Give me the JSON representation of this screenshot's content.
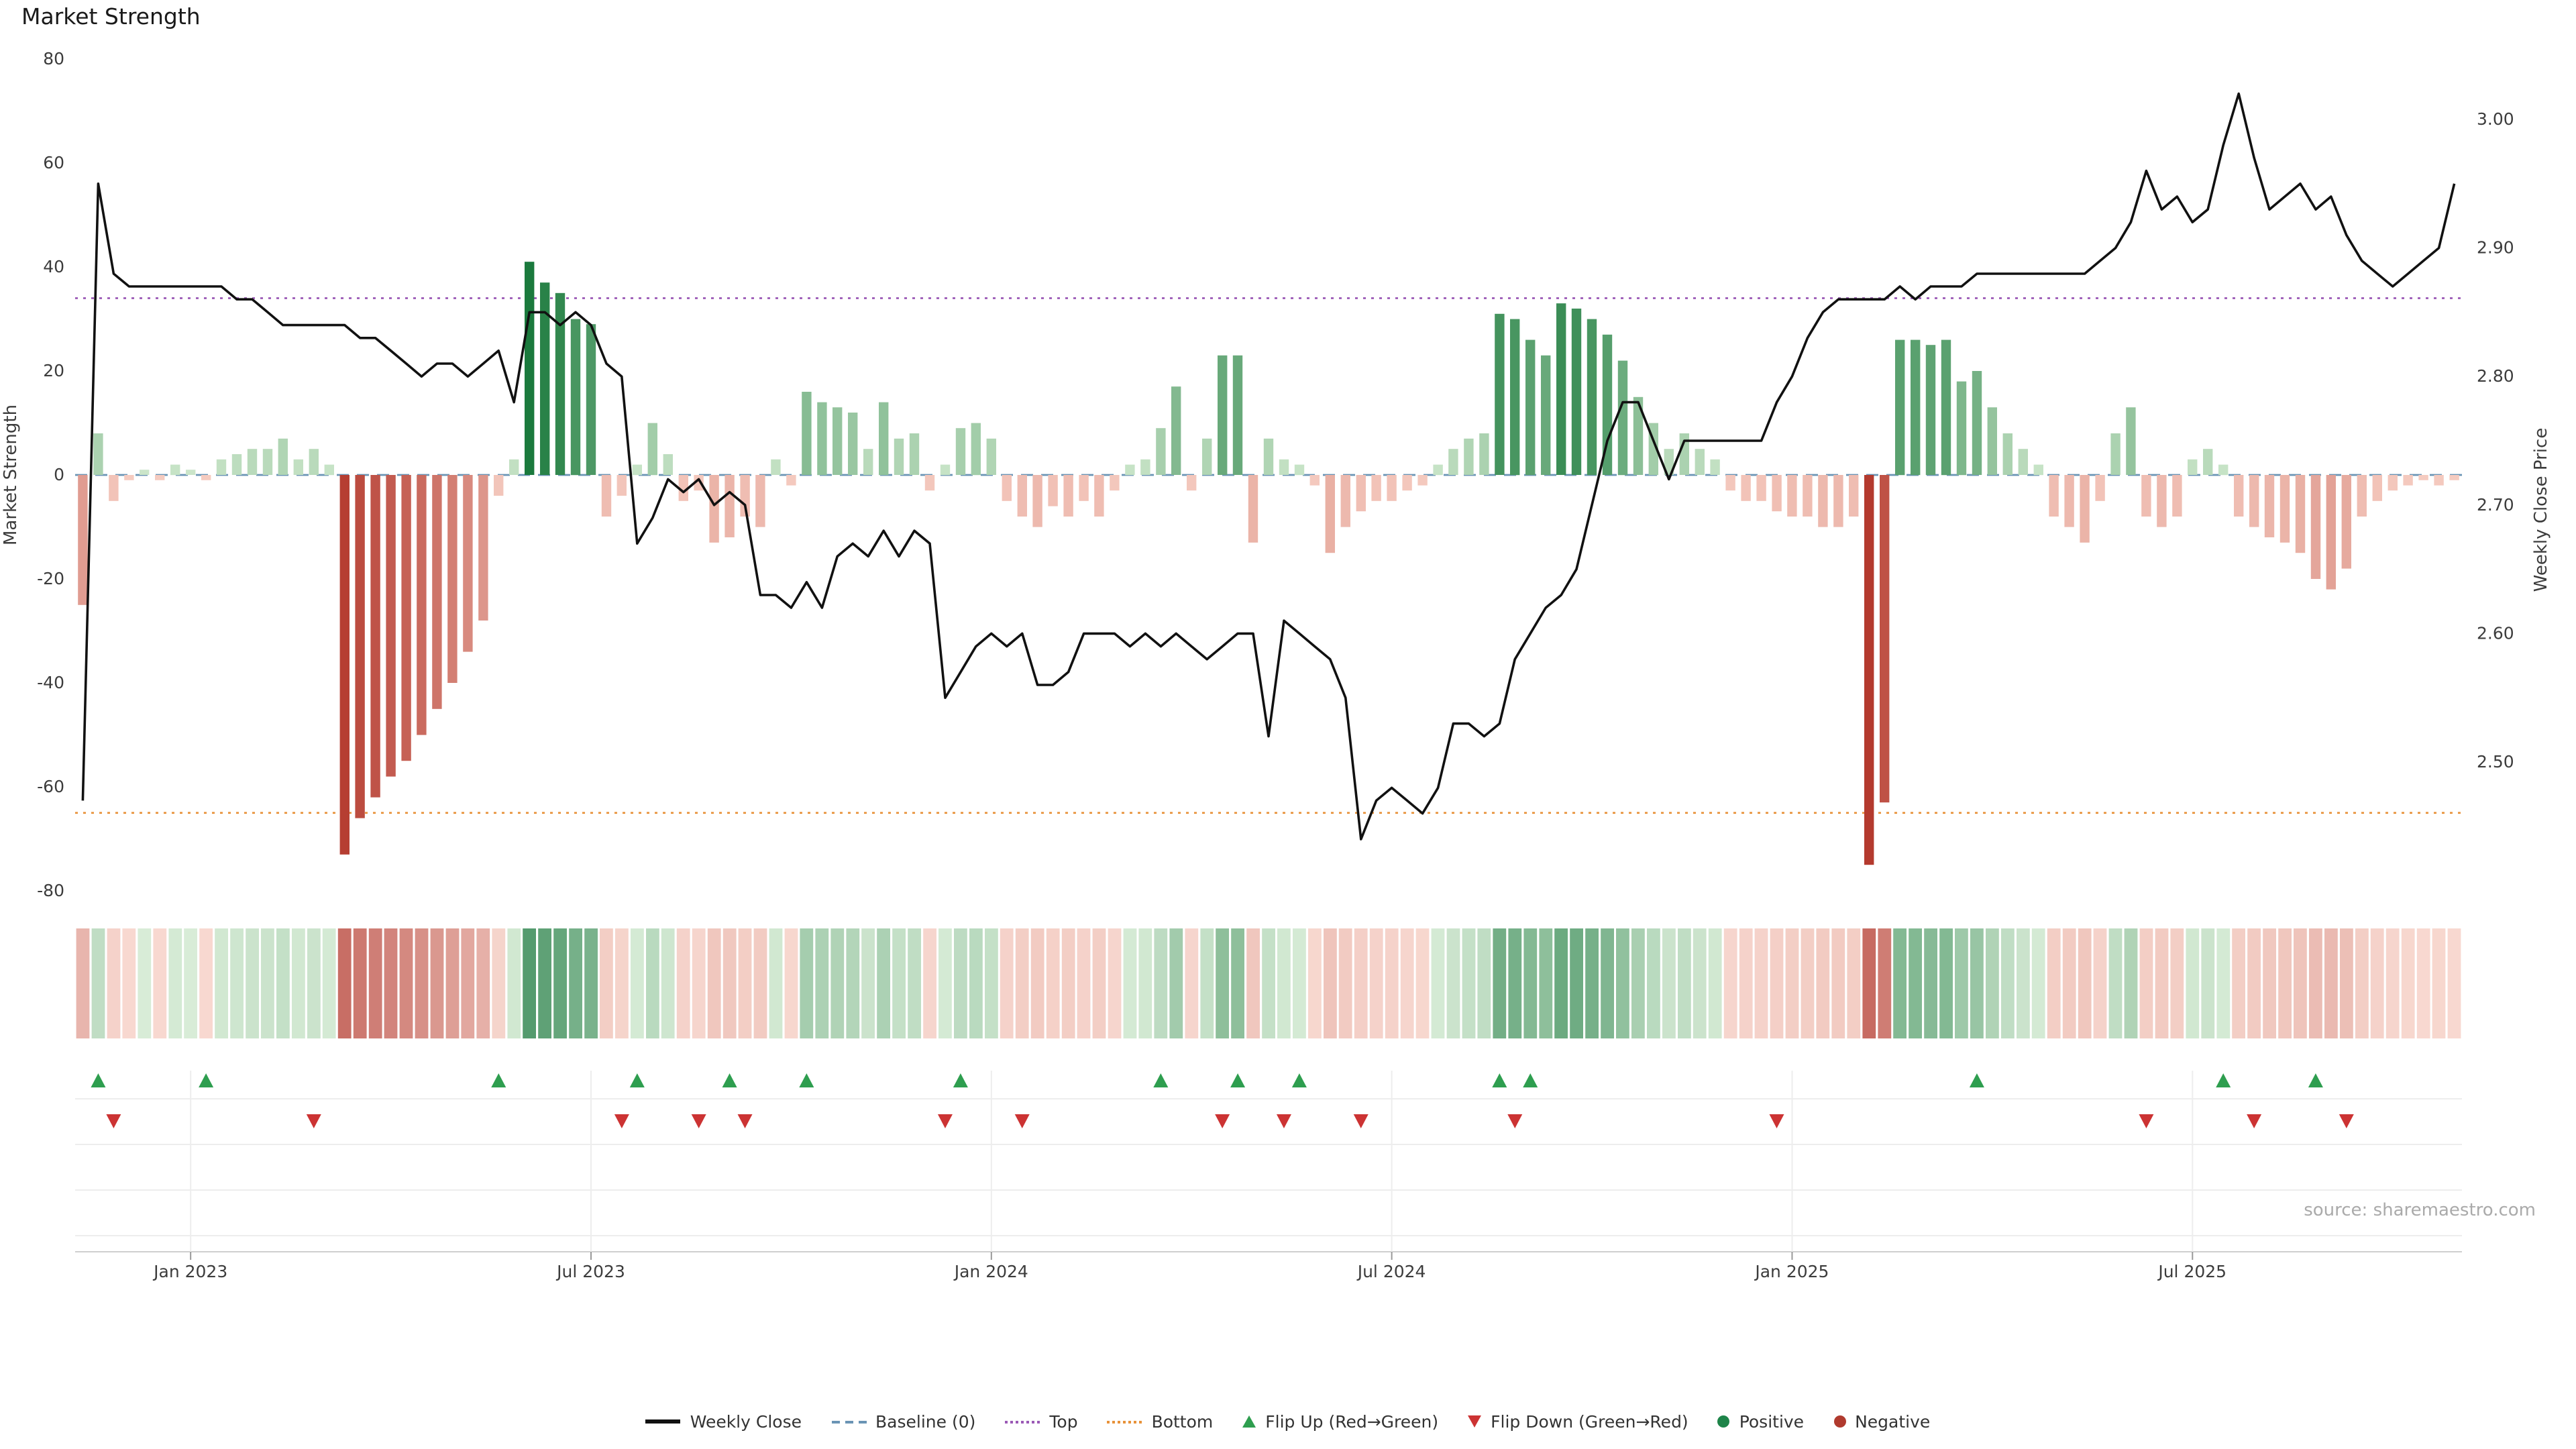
{
  "title": "Market Strength",
  "source": "source: sharemaestro.com",
  "y_left": {
    "label": "Market Strength",
    "ticks": [
      80,
      60,
      40,
      20,
      0,
      -20,
      -40,
      -60,
      -80
    ]
  },
  "y_right": {
    "label": "Weekly Close Price",
    "ticks": [
      3.0,
      2.9,
      2.8,
      2.7,
      2.6,
      2.5
    ]
  },
  "x_ticks": [
    {
      "label": "Jan 2023",
      "week": 7
    },
    {
      "label": "Jul 2023",
      "week": 33
    },
    {
      "label": "Jan 2024",
      "week": 59
    },
    {
      "label": "Jul 2024",
      "week": 85
    },
    {
      "label": "Jan 2025",
      "week": 111
    },
    {
      "label": "Jul 2025",
      "week": 137
    }
  ],
  "chart_data": {
    "type": "bar+line",
    "x_unit": "week",
    "baseline": 0,
    "top": 34,
    "bottom": -65,
    "strength_ylim": [
      -80,
      80
    ],
    "price_ylim": [
      2.44,
      3.05
    ],
    "strength": [
      -25,
      8,
      -5,
      -1,
      1,
      -1,
      2,
      1,
      -1,
      3,
      4,
      5,
      5,
      7,
      3,
      5,
      2,
      -73,
      -66,
      -62,
      -58,
      -55,
      -50,
      -45,
      -40,
      -34,
      -28,
      -4,
      3,
      41,
      37,
      35,
      30,
      29,
      -8,
      -4,
      2,
      10,
      4,
      -5,
      -3,
      -13,
      -12,
      -8,
      -10,
      3,
      -2,
      16,
      14,
      13,
      12,
      5,
      14,
      7,
      8,
      -3,
      2,
      9,
      10,
      7,
      -5,
      -8,
      -10,
      -6,
      -8,
      -5,
      -8,
      -3,
      2,
      3,
      9,
      17,
      -3,
      7,
      23,
      23,
      -13,
      7,
      3,
      2,
      -2,
      -15,
      -10,
      -7,
      -5,
      -5,
      -3,
      -2,
      2,
      5,
      7,
      8,
      31,
      30,
      26,
      23,
      33,
      32,
      30,
      27,
      22,
      15,
      10,
      5,
      8,
      5,
      3,
      -3,
      -5,
      -5,
      -7,
      -8,
      -8,
      -10,
      -10,
      -8,
      -75,
      -63,
      26,
      26,
      25,
      26,
      18,
      20,
      13,
      8,
      5,
      2,
      -8,
      -10,
      -13,
      -5,
      8,
      13,
      -8,
      -10,
      -8,
      3,
      5,
      2,
      -8,
      -10,
      -12,
      -13,
      -15,
      -20,
      -22,
      -18,
      -8,
      -5,
      -3,
      -2,
      -1,
      -2,
      -1
    ],
    "price": [
      2.47,
      2.95,
      2.88,
      2.87,
      2.87,
      2.87,
      2.87,
      2.87,
      2.87,
      2.87,
      2.86,
      2.86,
      2.85,
      2.84,
      2.84,
      2.84,
      2.84,
      2.84,
      2.83,
      2.83,
      2.82,
      2.81,
      2.8,
      2.81,
      2.81,
      2.8,
      2.81,
      2.82,
      2.78,
      2.85,
      2.85,
      2.84,
      2.85,
      2.84,
      2.81,
      2.8,
      2.67,
      2.69,
      2.72,
      2.71,
      2.72,
      2.7,
      2.71,
      2.7,
      2.63,
      2.63,
      2.62,
      2.64,
      2.62,
      2.66,
      2.67,
      2.66,
      2.68,
      2.66,
      2.68,
      2.67,
      2.55,
      2.57,
      2.59,
      2.6,
      2.59,
      2.6,
      2.56,
      2.56,
      2.57,
      2.6,
      2.6,
      2.6,
      2.59,
      2.6,
      2.59,
      2.6,
      2.59,
      2.58,
      2.59,
      2.6,
      2.6,
      2.52,
      2.61,
      2.6,
      2.59,
      2.58,
      2.55,
      2.44,
      2.47,
      2.48,
      2.47,
      2.46,
      2.48,
      2.53,
      2.53,
      2.52,
      2.53,
      2.58,
      2.6,
      2.62,
      2.63,
      2.65,
      2.7,
      2.75,
      2.78,
      2.78,
      2.75,
      2.72,
      2.75,
      2.75,
      2.75,
      2.75,
      2.75,
      2.75,
      2.78,
      2.8,
      2.83,
      2.85,
      2.86,
      2.86,
      2.86,
      2.86,
      2.87,
      2.86,
      2.87,
      2.87,
      2.87,
      2.88,
      2.88,
      2.88,
      2.88,
      2.88,
      2.88,
      2.88,
      2.88,
      2.89,
      2.9,
      2.92,
      2.96,
      2.93,
      2.94,
      2.92,
      2.93,
      2.98,
      3.02,
      2.97,
      2.93,
      2.94,
      2.95,
      2.93,
      2.94,
      2.91,
      2.89,
      2.88,
      2.87,
      2.88,
      2.89,
      2.9,
      2.95
    ],
    "flip_up_weeks": [
      1,
      8,
      27,
      36,
      42,
      47,
      57,
      70,
      75,
      79,
      92,
      94,
      123,
      139,
      145
    ],
    "flip_down_weeks": [
      2,
      15,
      35,
      40,
      43,
      56,
      61,
      74,
      78,
      83,
      93,
      110,
      134,
      141,
      147
    ]
  },
  "colors": {
    "line": "#111111",
    "baseline": "#6a94b5",
    "top": "#9b59b6",
    "bottom": "#e8923a",
    "flip_up": "#2e9e4f",
    "flip_down": "#cc3333",
    "green_low": "#cfe8cd",
    "green_high": "#1b7a3d",
    "red_low": "#f6cdc2",
    "red_high": "#b43a2e"
  },
  "legend": {
    "items": [
      {
        "label": "Weekly Close",
        "type": "line",
        "color": "#111111"
      },
      {
        "label": "Baseline (0)",
        "type": "dashed",
        "color": "#6a94b5"
      },
      {
        "label": "Top",
        "type": "dotted",
        "color": "#9b59b6"
      },
      {
        "label": "Bottom",
        "type": "dotted",
        "color": "#e8923a"
      },
      {
        "label": "Flip Up (Red→Green)",
        "type": "triangle-up",
        "color": "#2e9e4f"
      },
      {
        "label": "Flip Down (Green→Red)",
        "type": "triangle-down",
        "color": "#cc3333"
      },
      {
        "label": "Positive",
        "type": "dot",
        "color": "#1e8449"
      },
      {
        "label": "Negative",
        "type": "dot",
        "color": "#b03a2e"
      }
    ]
  }
}
